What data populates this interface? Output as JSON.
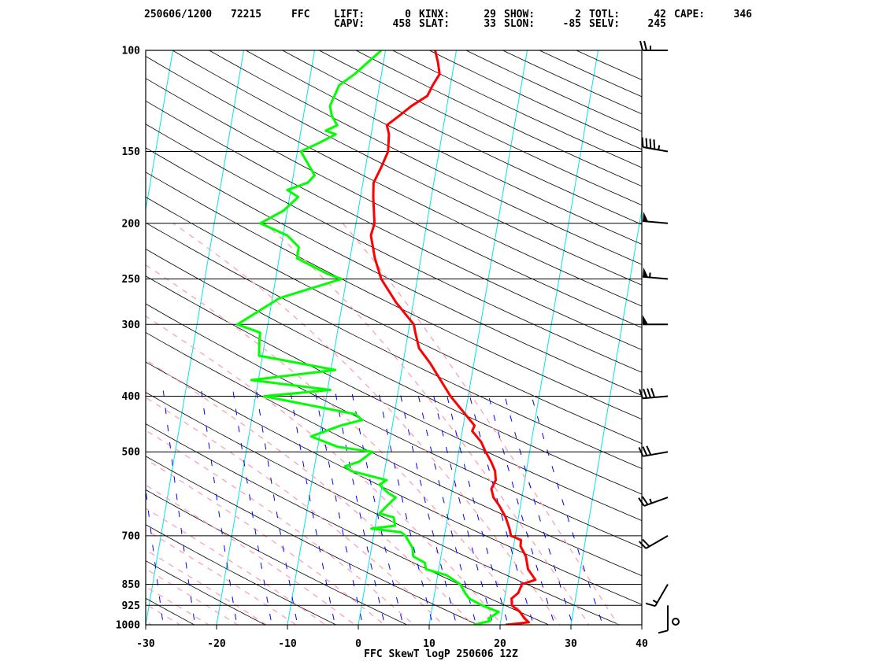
{
  "header": {
    "line1": [
      {
        "label": "250606/1200",
        "value": "72215"
      },
      {
        "label": "FFC",
        "value": ""
      },
      {
        "label": "LIFT:",
        "value": "0"
      },
      {
        "label": "KINX:",
        "value": "29"
      },
      {
        "label": "SHOW:",
        "value": "2"
      },
      {
        "label": "TOTL:",
        "value": "42"
      },
      {
        "label": "CAPE:",
        "value": "346"
      }
    ],
    "line2": [
      {
        "label": "CAPV:",
        "value": "458"
      },
      {
        "label": "SLAT:",
        "value": "33"
      },
      {
        "label": "SLON:",
        "value": "-85"
      },
      {
        "label": "SELV:",
        "value": "245"
      }
    ]
  },
  "colors": {
    "frame": "#000000",
    "temperature": "#ff0000",
    "dewpoint": "#00ff00",
    "isotherm": "#00e5e5",
    "dry_adiabat": "#000000",
    "moist_adiabat": "#ffa0b0",
    "mixing_ratio": "#0000ff",
    "wind_barb": "#000000"
  },
  "chart_data": {
    "type": "line",
    "title": "FFC SkewT logP 250606 12Z",
    "x_ticks": [
      -30,
      -20,
      -10,
      0,
      10,
      20,
      30,
      40
    ],
    "p_ticks": [
      100,
      150,
      200,
      250,
      300,
      400,
      500,
      700,
      850,
      925,
      1000
    ],
    "xlim": [
      -30,
      40
    ],
    "plim": [
      1000,
      100
    ],
    "yscale": "log",
    "grid": true,
    "series": [
      {
        "key": "temperature",
        "points": [
          [
            1000,
            20.8
          ],
          [
            995,
            22.5
          ],
          [
            990,
            24.0
          ],
          [
            975,
            23.3
          ],
          [
            950,
            22.5
          ],
          [
            925,
            21.2
          ],
          [
            900,
            21.0
          ],
          [
            880,
            21.8
          ],
          [
            860,
            22.0
          ],
          [
            850,
            22.1
          ],
          [
            835,
            23.9
          ],
          [
            800,
            22.6
          ],
          [
            760,
            22.0
          ],
          [
            730,
            21.0
          ],
          [
            712,
            20.9
          ],
          [
            700,
            19.4
          ],
          [
            680,
            19.0
          ],
          [
            650,
            18.2
          ],
          [
            620,
            17.0
          ],
          [
            600,
            16.0
          ],
          [
            580,
            15.5
          ],
          [
            560,
            15.9
          ],
          [
            540,
            15.6
          ],
          [
            520,
            14.8
          ],
          [
            500,
            13.8
          ],
          [
            480,
            12.9
          ],
          [
            460,
            11.4
          ],
          [
            450,
            11.6
          ],
          [
            400,
            7.5
          ],
          [
            350,
            3.8
          ],
          [
            330,
            1.9
          ],
          [
            310,
            1.0
          ],
          [
            300,
            0.6
          ],
          [
            275,
            -2.4
          ],
          [
            250,
            -5.1
          ],
          [
            230,
            -6.5
          ],
          [
            210,
            -7.6
          ],
          [
            200,
            -7.4
          ],
          [
            180,
            -8.2
          ],
          [
            170,
            -8.5
          ],
          [
            160,
            -7.8
          ],
          [
            150,
            -7.2
          ],
          [
            140,
            -7.5
          ],
          [
            135,
            -8.0
          ],
          [
            130,
            -6.5
          ],
          [
            125,
            -5.0
          ],
          [
            120,
            -3.0
          ],
          [
            115,
            -2.5
          ],
          [
            110,
            -1.8
          ],
          [
            105,
            -2.3
          ],
          [
            100,
            -3.0
          ]
        ]
      },
      {
        "key": "dewpoint",
        "points": [
          [
            1000,
            16.3
          ],
          [
            985,
            18.5
          ],
          [
            975,
            18.2
          ],
          [
            950,
            19.5
          ],
          [
            925,
            17.0
          ],
          [
            900,
            15.0
          ],
          [
            880,
            14.3
          ],
          [
            850,
            13.4
          ],
          [
            820,
            11.3
          ],
          [
            800,
            8.2
          ],
          [
            780,
            7.9
          ],
          [
            760,
            6.1
          ],
          [
            735,
            5.8
          ],
          [
            700,
            4.5
          ],
          [
            690,
            3.8
          ],
          [
            680,
            -0.5
          ],
          [
            672,
            2.8
          ],
          [
            650,
            2.4
          ],
          [
            640,
            0.3
          ],
          [
            620,
            1.2
          ],
          [
            600,
            2.2
          ],
          [
            590,
            1.1
          ],
          [
            580,
            0.3
          ],
          [
            570,
            -0.4
          ],
          [
            560,
            0.5
          ],
          [
            540,
            -4.7
          ],
          [
            530,
            -5.7
          ],
          [
            520,
            -3.8
          ],
          [
            500,
            -2.2
          ],
          [
            490,
            -7.2
          ],
          [
            470,
            -11.2
          ],
          [
            450,
            -7.3
          ],
          [
            440,
            -4.4
          ],
          [
            430,
            -5.5
          ],
          [
            400,
            -18.8
          ],
          [
            390,
            -9.6
          ],
          [
            375,
            -21.0
          ],
          [
            360,
            -9.4
          ],
          [
            340,
            -20.5
          ],
          [
            320,
            -20.8
          ],
          [
            310,
            -20.9
          ],
          [
            300,
            -24.3
          ],
          [
            270,
            -19.0
          ],
          [
            250,
            -10.7
          ],
          [
            245,
            -12.8
          ],
          [
            230,
            -17.5
          ],
          [
            220,
            -17.5
          ],
          [
            210,
            -19.4
          ],
          [
            200,
            -23.5
          ],
          [
            190,
            -20.5
          ],
          [
            180,
            -18.8
          ],
          [
            175,
            -20.5
          ],
          [
            170,
            -17.8
          ],
          [
            165,
            -17.0
          ],
          [
            150,
            -19.5
          ],
          [
            145,
            -17.2
          ],
          [
            140,
            -15.0
          ],
          [
            138,
            -16.5
          ],
          [
            135,
            -15.0
          ],
          [
            130,
            -16.0
          ],
          [
            125,
            -16.5
          ],
          [
            115,
            -15.7
          ],
          [
            110,
            -13.8
          ],
          [
            100,
            -10.6
          ]
        ]
      }
    ],
    "wind_barbs": [
      {
        "p": 1000,
        "dir": 0,
        "spd": 0
      },
      {
        "p": 925,
        "dir": 180,
        "spd": 10
      },
      {
        "p": 850,
        "dir": 210,
        "spd": 15
      },
      {
        "p": 700,
        "dir": 240,
        "spd": 20
      },
      {
        "p": 600,
        "dir": 250,
        "spd": 25
      },
      {
        "p": 500,
        "dir": 260,
        "spd": 30
      },
      {
        "p": 400,
        "dir": 265,
        "spd": 40
      },
      {
        "p": 300,
        "dir": 270,
        "spd": 50
      },
      {
        "p": 250,
        "dir": 275,
        "spd": 55
      },
      {
        "p": 200,
        "dir": 275,
        "spd": 50
      },
      {
        "p": 150,
        "dir": 280,
        "spd": 45
      },
      {
        "p": 100,
        "dir": 270,
        "spd": 25
      }
    ]
  }
}
